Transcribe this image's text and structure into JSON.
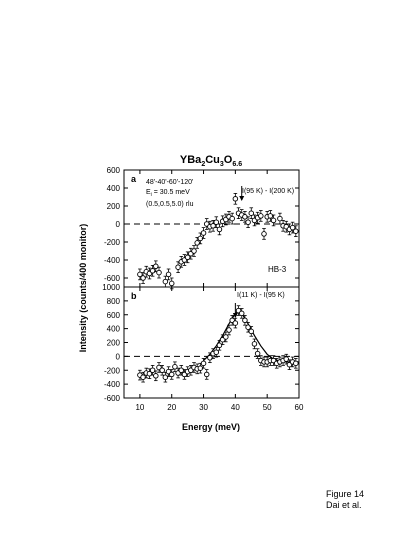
{
  "chart_data": [
    {
      "panel_label": "a",
      "type": "scatter",
      "title": "YBa2Cu3O6.6",
      "title_parts": {
        "main": "YBa",
        "sub1": "2",
        "mid1": "Cu",
        "sub2": "3",
        "mid2": "O",
        "sub3": "6.6"
      },
      "annotations": {
        "angles": "48'-40'-60'-120'",
        "ei_prefix": "E",
        "ei_sub": "i",
        "ei_rest": " = 30.5 meV",
        "q": "(0.5,0.5,5.0) rlu",
        "arrow_label": "I(95 K) - I(200 K)",
        "sample": "HB-3"
      },
      "xlim": [
        5,
        60
      ],
      "ylim": [
        -700,
        600
      ],
      "y_ticks": [
        600,
        400,
        200,
        0,
        -200,
        -400,
        -600
      ],
      "series": [
        {
          "marker": "open-circle",
          "x": [
            10,
            11,
            12,
            13,
            14,
            15,
            16,
            18,
            19,
            20,
            22,
            23,
            24,
            25,
            26,
            27,
            28,
            29,
            30,
            31,
            32,
            33,
            34,
            35,
            36,
            37,
            38,
            39,
            40,
            41,
            42,
            43,
            44,
            45,
            46,
            47,
            48,
            49,
            50,
            51,
            52,
            54,
            55,
            56,
            57,
            58,
            59
          ],
          "y": [
            -560,
            -600,
            -530,
            -550,
            -520,
            -470,
            -540,
            -640,
            -560,
            -660,
            -480,
            -420,
            -400,
            -370,
            -330,
            -300,
            -210,
            -160,
            -100,
            0,
            -30,
            -20,
            20,
            -60,
            30,
            50,
            80,
            60,
            280,
            120,
            100,
            80,
            20,
            120,
            40,
            70,
            90,
            -110,
            80,
            90,
            40,
            60,
            -20,
            -30,
            -60,
            -40,
            -80
          ],
          "err": [
            60,
            60,
            60,
            60,
            60,
            60,
            60,
            60,
            60,
            60,
            60,
            60,
            60,
            60,
            60,
            60,
            60,
            60,
            60,
            60,
            60,
            60,
            60,
            60,
            60,
            60,
            60,
            60,
            60,
            60,
            60,
            60,
            60,
            60,
            60,
            60,
            60,
            60,
            60,
            60,
            60,
            60,
            60,
            60,
            60,
            60,
            60
          ]
        }
      ],
      "arrow_x": 42,
      "baseline": 0,
      "grid": false
    },
    {
      "panel_label": "b",
      "type": "scatter",
      "annotations": {
        "arrow_label": "I(11 K) - I(95 K)"
      },
      "xlim": [
        5,
        60
      ],
      "ylim": [
        -600,
        1000
      ],
      "y_ticks": [
        1000,
        800,
        600,
        400,
        200,
        0,
        -200,
        -400,
        -600
      ],
      "x_ticks": [
        10,
        20,
        30,
        40,
        50,
        60
      ],
      "xlabel": "Energy (meV)",
      "ylabel": "Intensity (counts/400 monitor)",
      "series": [
        {
          "marker": "open-circle",
          "x": [
            10,
            11,
            12,
            13,
            14,
            15,
            16,
            17,
            18,
            19,
            20,
            21,
            22,
            23,
            24,
            25,
            26,
            27,
            28,
            29,
            30,
            31,
            32,
            33,
            34,
            35,
            36,
            37,
            38,
            39,
            40,
            41,
            42,
            43,
            44,
            45,
            46,
            47,
            48,
            49,
            50,
            51,
            52,
            53,
            54,
            55,
            56,
            57,
            58,
            59
          ],
          "y": [
            -270,
            -300,
            -240,
            -250,
            -200,
            -280,
            -160,
            -200,
            -300,
            -220,
            -260,
            -150,
            -240,
            -200,
            -260,
            -220,
            -200,
            -160,
            -180,
            -170,
            -100,
            -260,
            -20,
            40,
            60,
            160,
            240,
            280,
            380,
            520,
            480,
            660,
            620,
            520,
            420,
            360,
            180,
            40,
            -60,
            -80,
            -80,
            -60,
            -60,
            -100,
            -80,
            -60,
            -40,
            -120,
            -80,
            -100
          ],
          "err": [
            70,
            70,
            70,
            70,
            70,
            70,
            70,
            70,
            70,
            70,
            70,
            70,
            70,
            70,
            70,
            70,
            70,
            70,
            70,
            70,
            70,
            70,
            70,
            70,
            70,
            70,
            70,
            70,
            70,
            70,
            70,
            70,
            70,
            70,
            70,
            70,
            70,
            70,
            70,
            70,
            70,
            70,
            70,
            70,
            70,
            70,
            70,
            70,
            70,
            70
          ]
        }
      ],
      "fit_line": {
        "x": [
          30,
          32,
          34,
          36,
          38,
          40,
          41,
          42,
          44,
          46,
          48,
          50,
          52,
          54,
          56,
          58,
          60
        ],
        "y": [
          -60,
          30,
          150,
          300,
          470,
          620,
          650,
          620,
          470,
          300,
          150,
          30,
          -40,
          -70,
          -80,
          -80,
          -80
        ]
      },
      "arrow_x": 40,
      "baseline": 0,
      "grid": false
    }
  ],
  "caption": {
    "line1": "Figure 14",
    "line2": "Dai et al."
  },
  "colors": {
    "ink": "#000000",
    "background": "#ffffff"
  }
}
